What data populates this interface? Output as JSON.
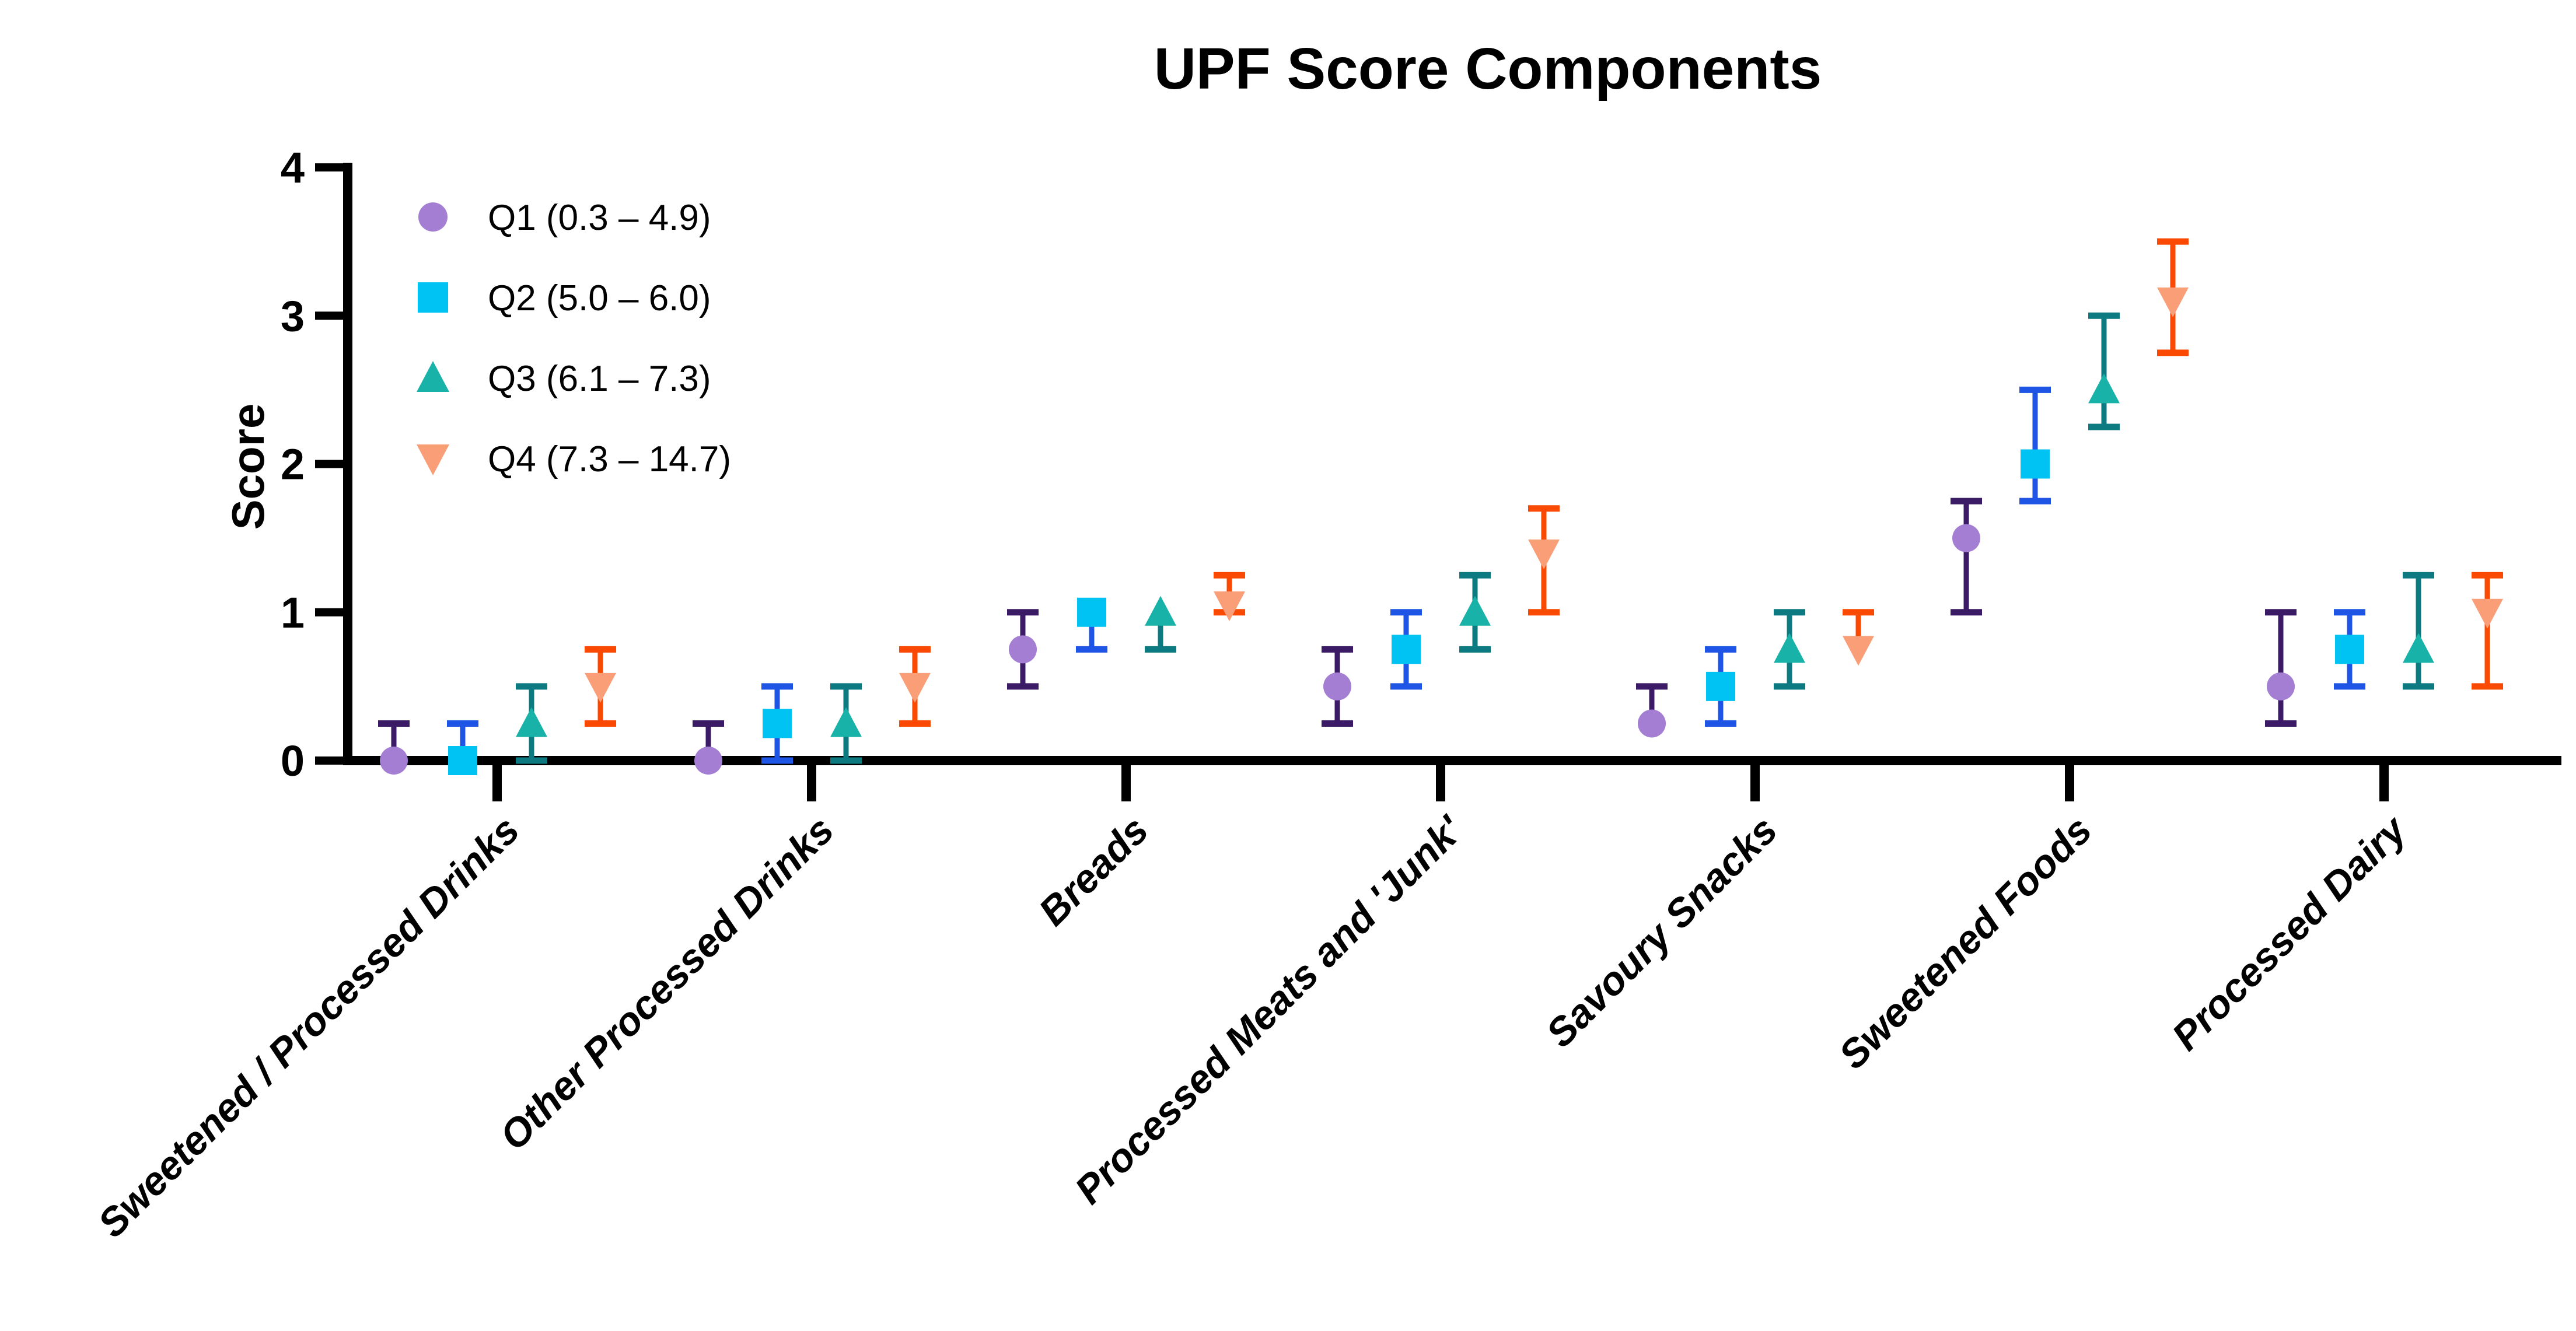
{
  "title": "UPF Score Components",
  "chart_data": {
    "type": "scatter",
    "title": "UPF Score Components",
    "xlabel": "",
    "ylabel": "Score",
    "ylim": [
      0,
      4
    ],
    "y_ticks": [
      "0",
      "1",
      "2",
      "3",
      "4"
    ],
    "grid": "off",
    "legend_position": "inside top-left",
    "categories": [
      "Sweetened / Processed Drinks",
      "Other Processed Drinks",
      "Breads",
      "Processed Meats and 'Junk'",
      "Savoury Snacks",
      "Sweetened Foods",
      "Processed Dairy"
    ],
    "series": [
      {
        "name": "Q1 (0.3 – 4.9)",
        "marker": "circle-icon",
        "fill_color": "#A37ED2",
        "line_color": "#3B1A66",
        "values": [
          0,
          0,
          0.75,
          0.5,
          0.25,
          1.5,
          0.5
        ],
        "err_low": [
          0,
          0,
          0.5,
          0.25,
          0.25,
          1.0,
          0.25
        ],
        "err_high": [
          0.25,
          0.25,
          1.0,
          0.75,
          0.5,
          1.75,
          1.0
        ]
      },
      {
        "name": "Q2 (5.0 – 6.0)",
        "marker": "square-icon",
        "fill_color": "#00C2F3",
        "line_color": "#1F55E5",
        "values": [
          0,
          0.25,
          1.0,
          0.75,
          0.5,
          2.0,
          0.75
        ],
        "err_low": [
          0,
          0,
          0.75,
          0.5,
          0.25,
          1.75,
          0.5
        ],
        "err_high": [
          0.25,
          0.5,
          1.0,
          1.0,
          0.75,
          2.5,
          1.0
        ]
      },
      {
        "name": "Q3 (6.1 – 7.3)",
        "marker": "triangle-up-icon",
        "fill_color": "#18B2A8",
        "line_color": "#0C7A80",
        "values": [
          0.25,
          0.25,
          1.0,
          1.0,
          0.75,
          2.5,
          0.75
        ],
        "err_low": [
          0,
          0,
          0.75,
          0.75,
          0.5,
          2.25,
          0.5
        ],
        "err_high": [
          0.5,
          0.5,
          1.0,
          1.25,
          1.0,
          3.0,
          1.25
        ]
      },
      {
        "name": "Q4 (7.3 – 14.7)",
        "marker": "triangle-down-icon",
        "fill_color": "#FA9E78",
        "line_color": "#F94902",
        "values": [
          0.5,
          0.5,
          1.05,
          1.4,
          0.75,
          3.1,
          1.0
        ],
        "err_low": [
          0.25,
          0.25,
          1.0,
          1.0,
          0.75,
          2.75,
          0.5
        ],
        "err_high": [
          0.75,
          0.75,
          1.25,
          1.7,
          1.0,
          3.5,
          1.25
        ]
      }
    ]
  }
}
